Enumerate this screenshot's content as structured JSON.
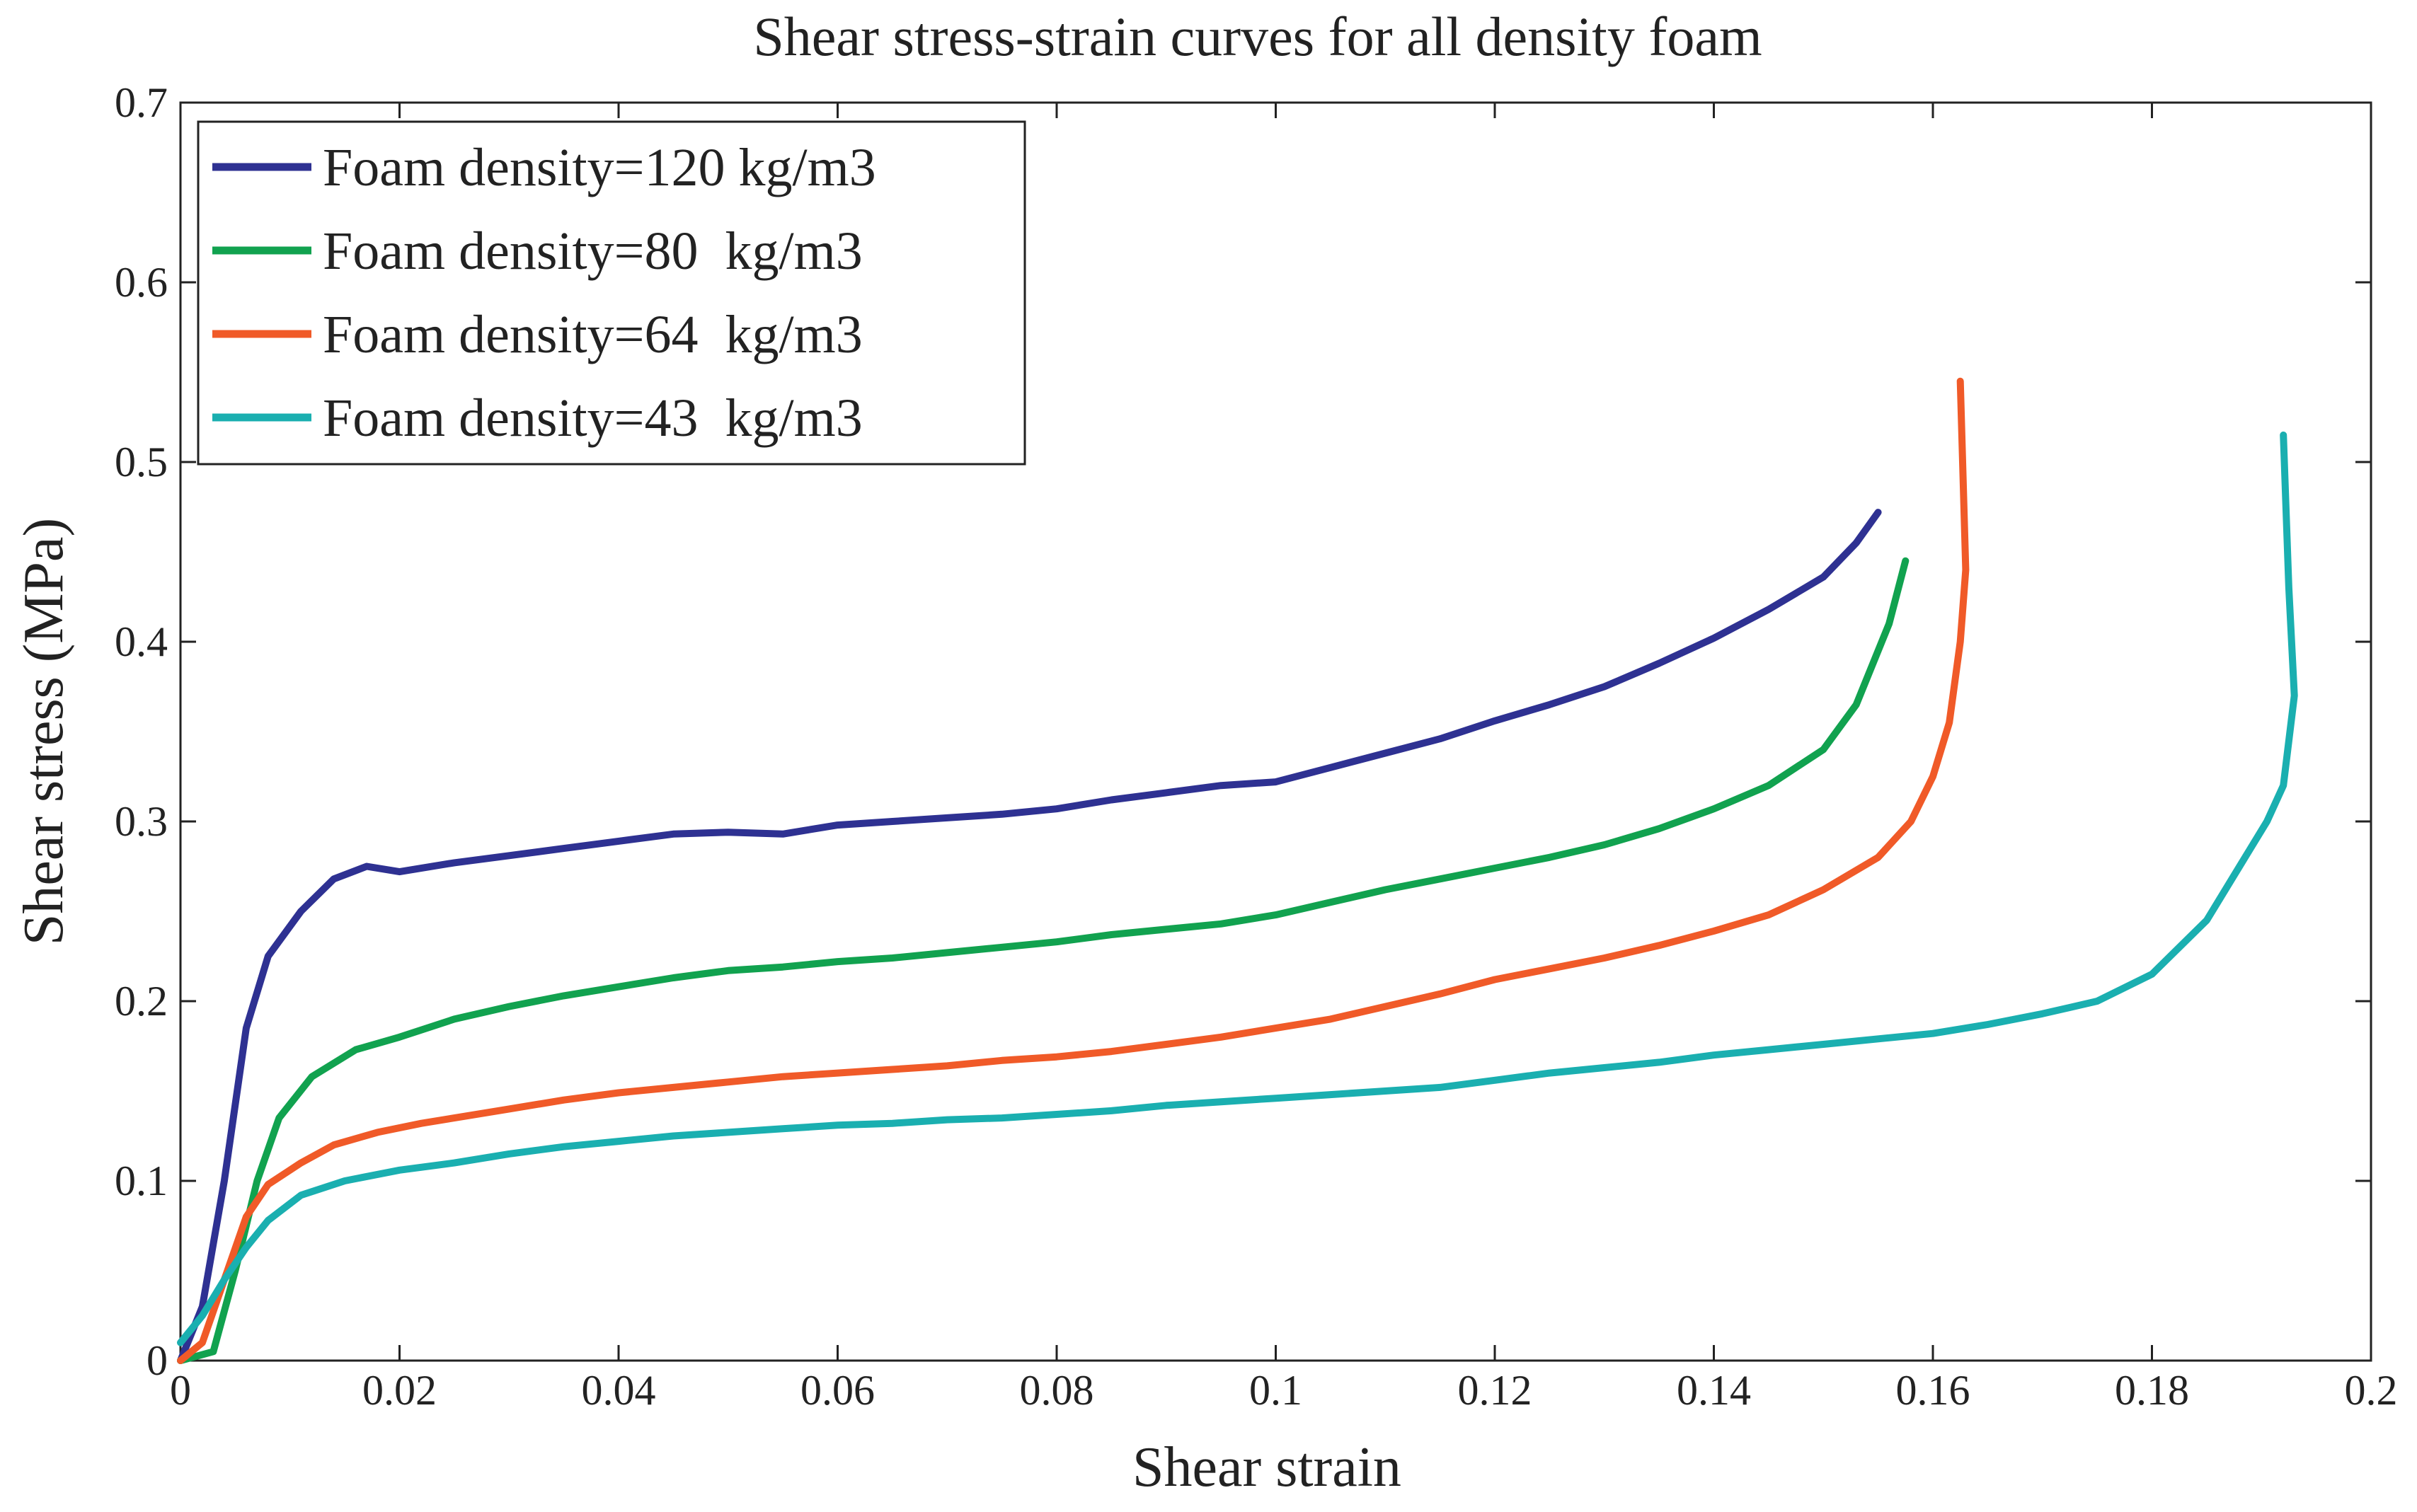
{
  "chart_data": {
    "type": "line",
    "title": "Shear stress-strain curves for all density foam",
    "xlabel": "Shear strain",
    "ylabel": "Shear stress (MPa)",
    "xlim": [
      0,
      0.2
    ],
    "ylim": [
      0,
      0.7
    ],
    "xticks": [
      0,
      0.02,
      0.04,
      0.06,
      0.08,
      0.1,
      0.12,
      0.14,
      0.16,
      0.18,
      0.2
    ],
    "xtick_labels": [
      "0",
      "0.02",
      "0.04",
      "0.06",
      "0.08",
      "0.1",
      "0.12",
      "0.14",
      "0.16",
      "0.18",
      "0.2"
    ],
    "yticks": [
      0,
      0.1,
      0.2,
      0.3,
      0.4,
      0.5,
      0.6,
      0.7
    ],
    "ytick_labels": [
      "0",
      "0.1",
      "0.2",
      "0.3",
      "0.4",
      "0.5",
      "0.6",
      "0.7"
    ],
    "grid": false,
    "legend_position": "top-left",
    "series": [
      {
        "name": "Foam density=120 kg/m3",
        "color": "#2e3192",
        "x": [
          0,
          0.002,
          0.004,
          0.006,
          0.008,
          0.011,
          0.014,
          0.017,
          0.02,
          0.025,
          0.03,
          0.035,
          0.04,
          0.045,
          0.05,
          0.055,
          0.06,
          0.065,
          0.07,
          0.075,
          0.08,
          0.085,
          0.09,
          0.095,
          0.1,
          0.105,
          0.11,
          0.115,
          0.12,
          0.125,
          0.13,
          0.135,
          0.14,
          0.145,
          0.15,
          0.153,
          0.155
        ],
        "y": [
          0,
          0.03,
          0.1,
          0.185,
          0.225,
          0.25,
          0.268,
          0.275,
          0.272,
          0.277,
          0.281,
          0.285,
          0.289,
          0.293,
          0.294,
          0.293,
          0.298,
          0.3,
          0.302,
          0.304,
          0.307,
          0.312,
          0.316,
          0.32,
          0.322,
          0.33,
          0.338,
          0.346,
          0.356,
          0.365,
          0.375,
          0.388,
          0.402,
          0.418,
          0.436,
          0.455,
          0.472
        ]
      },
      {
        "name": "Foam density=80  kg/m3",
        "color": "#11a24f",
        "x": [
          0,
          0.003,
          0.005,
          0.007,
          0.009,
          0.012,
          0.016,
          0.02,
          0.025,
          0.03,
          0.035,
          0.04,
          0.045,
          0.05,
          0.055,
          0.06,
          0.065,
          0.07,
          0.075,
          0.08,
          0.085,
          0.09,
          0.095,
          0.1,
          0.105,
          0.11,
          0.115,
          0.12,
          0.125,
          0.13,
          0.135,
          0.14,
          0.145,
          0.15,
          0.153,
          0.156,
          0.1575
        ],
        "y": [
          0,
          0.005,
          0.05,
          0.1,
          0.135,
          0.158,
          0.173,
          0.18,
          0.19,
          0.197,
          0.203,
          0.208,
          0.213,
          0.217,
          0.219,
          0.222,
          0.224,
          0.227,
          0.23,
          0.233,
          0.237,
          0.24,
          0.243,
          0.248,
          0.255,
          0.262,
          0.268,
          0.274,
          0.28,
          0.287,
          0.296,
          0.307,
          0.32,
          0.34,
          0.365,
          0.41,
          0.445
        ]
      },
      {
        "name": "Foam density=64  kg/m3",
        "color": "#f05a28",
        "x": [
          0,
          0.002,
          0.004,
          0.006,
          0.008,
          0.011,
          0.014,
          0.018,
          0.022,
          0.026,
          0.03,
          0.035,
          0.04,
          0.045,
          0.05,
          0.055,
          0.06,
          0.065,
          0.07,
          0.075,
          0.08,
          0.085,
          0.09,
          0.095,
          0.1,
          0.105,
          0.11,
          0.115,
          0.12,
          0.125,
          0.13,
          0.135,
          0.14,
          0.145,
          0.15,
          0.155,
          0.158,
          0.16,
          0.1615,
          0.1625,
          0.163,
          0.1625
        ],
        "y": [
          0,
          0.01,
          0.045,
          0.08,
          0.098,
          0.11,
          0.12,
          0.127,
          0.132,
          0.136,
          0.14,
          0.145,
          0.149,
          0.152,
          0.155,
          0.158,
          0.16,
          0.162,
          0.164,
          0.167,
          0.169,
          0.172,
          0.176,
          0.18,
          0.185,
          0.19,
          0.197,
          0.204,
          0.212,
          0.218,
          0.224,
          0.231,
          0.239,
          0.248,
          0.262,
          0.28,
          0.3,
          0.325,
          0.355,
          0.4,
          0.44,
          0.545
        ]
      },
      {
        "name": "Foam density=43  kg/m3",
        "color": "#1aafb0",
        "x": [
          0,
          0.002,
          0.004,
          0.006,
          0.008,
          0.011,
          0.015,
          0.02,
          0.025,
          0.03,
          0.035,
          0.04,
          0.045,
          0.05,
          0.055,
          0.06,
          0.065,
          0.07,
          0.075,
          0.08,
          0.085,
          0.09,
          0.095,
          0.1,
          0.105,
          0.11,
          0.115,
          0.12,
          0.125,
          0.13,
          0.135,
          0.14,
          0.145,
          0.15,
          0.155,
          0.16,
          0.165,
          0.17,
          0.175,
          0.18,
          0.185,
          0.188,
          0.1905,
          0.192,
          0.193,
          0.1925,
          0.192
        ],
        "y": [
          0.01,
          0.025,
          0.045,
          0.063,
          0.078,
          0.092,
          0.1,
          0.106,
          0.11,
          0.115,
          0.119,
          0.122,
          0.125,
          0.127,
          0.129,
          0.131,
          0.132,
          0.134,
          0.135,
          0.137,
          0.139,
          0.142,
          0.144,
          0.146,
          0.148,
          0.15,
          0.152,
          0.156,
          0.16,
          0.163,
          0.166,
          0.17,
          0.173,
          0.176,
          0.179,
          0.182,
          0.187,
          0.193,
          0.2,
          0.215,
          0.245,
          0.275,
          0.3,
          0.32,
          0.37,
          0.43,
          0.515
        ]
      }
    ]
  }
}
